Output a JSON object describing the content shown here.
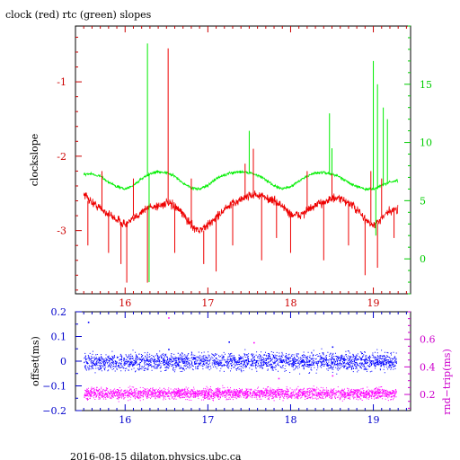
{
  "title": "clock (red) rtc (green) slopes",
  "footer": "2016-08-15  dilaton.physics.ubc.ca",
  "colors": {
    "clock": "#ee0000",
    "rtc": "#00ee00",
    "offset": "#0000ff",
    "rndtrip": "#ff00ff",
    "frame_top": "#000000",
    "bottom_axis_top": "#0000cc",
    "left_axis_bottom": "#0000cc",
    "right_axis_top": "#00cc00",
    "right_axis_bottom": "#cc00cc",
    "left_axis_top": "#cc0000"
  },
  "chart_data": [
    {
      "id": "slopes",
      "type": "line",
      "ylabel_left": "clockslope",
      "xlim": [
        15.4,
        19.45
      ],
      "ylim_left": [
        -3.85,
        -0.25
      ],
      "ylim_right": [
        -3,
        20
      ],
      "x_ticks": [
        "16",
        "17",
        "18",
        "19"
      ],
      "y_left_ticks": [
        "-1",
        "-2",
        "-3"
      ],
      "y_right_ticks": [
        "0",
        "5",
        "10",
        "15"
      ],
      "grid": false,
      "series": [
        {
          "axis": "left",
          "x": [
            15.5,
            15.6,
            15.7,
            15.8,
            15.9,
            16.0,
            16.1,
            16.2,
            16.3,
            16.4,
            16.5,
            16.6,
            16.7,
            16.8,
            16.9,
            17.0,
            17.1,
            17.2,
            17.3,
            17.4,
            17.5,
            17.6,
            17.7,
            17.8,
            17.9,
            18.0,
            18.1,
            18.2,
            18.3,
            18.4,
            18.5,
            18.6,
            18.7,
            18.8,
            18.9,
            19.0,
            19.1,
            19.2,
            19.3
          ],
          "y": [
            -2.5,
            -2.62,
            -2.7,
            -2.78,
            -2.85,
            -2.92,
            -2.85,
            -2.74,
            -2.68,
            -2.67,
            -2.63,
            -2.68,
            -2.78,
            -2.93,
            -3.0,
            -2.93,
            -2.82,
            -2.72,
            -2.64,
            -2.58,
            -2.52,
            -2.52,
            -2.56,
            -2.6,
            -2.67,
            -2.78,
            -2.8,
            -2.73,
            -2.67,
            -2.61,
            -2.57,
            -2.58,
            -2.62,
            -2.72,
            -2.85,
            -2.94,
            -2.84,
            -2.74,
            -2.72
          ]
        },
        {
          "axis": "right",
          "x": [
            15.5,
            15.6,
            15.7,
            15.8,
            15.9,
            16.0,
            16.1,
            16.2,
            16.3,
            16.4,
            16.5,
            16.6,
            16.7,
            16.8,
            16.9,
            17.0,
            17.1,
            17.2,
            17.3,
            17.4,
            17.5,
            17.6,
            17.7,
            17.8,
            17.9,
            18.0,
            18.1,
            18.2,
            18.3,
            18.4,
            18.5,
            18.6,
            18.7,
            18.8,
            18.9,
            19.0,
            19.1,
            19.2,
            19.3
          ],
          "y": [
            7.3,
            7.3,
            7.1,
            6.6,
            6.2,
            6.0,
            6.3,
            6.9,
            7.3,
            7.5,
            7.4,
            7.1,
            6.5,
            6.1,
            6.0,
            6.3,
            6.9,
            7.2,
            7.4,
            7.5,
            7.4,
            7.2,
            6.8,
            6.3,
            6.0,
            6.2,
            6.7,
            7.1,
            7.4,
            7.4,
            7.3,
            7.0,
            6.6,
            6.2,
            6.0,
            6.0,
            6.3,
            6.6,
            6.7
          ]
        }
      ],
      "spikes": [
        {
          "axis": "left",
          "x": 15.55,
          "y1": -2.6,
          "y2": -3.2
        },
        {
          "axis": "left",
          "x": 15.72,
          "y1": -2.7,
          "y2": -2.2
        },
        {
          "axis": "left",
          "x": 15.8,
          "y1": -2.8,
          "y2": -3.3
        },
        {
          "axis": "left",
          "x": 15.95,
          "y1": -2.9,
          "y2": -3.45
        },
        {
          "axis": "left",
          "x": 16.02,
          "y1": -2.9,
          "y2": -3.7
        },
        {
          "axis": "left",
          "x": 16.1,
          "y1": -2.8,
          "y2": -2.3
        },
        {
          "axis": "left",
          "x": 16.27,
          "y1": -2.7,
          "y2": -3.7
        },
        {
          "axis": "left",
          "x": 16.52,
          "y1": -2.65,
          "y2": -0.55
        },
        {
          "axis": "left",
          "x": 16.6,
          "y1": -2.7,
          "y2": -3.3
        },
        {
          "axis": "left",
          "x": 16.8,
          "y1": -2.9,
          "y2": -2.3
        },
        {
          "axis": "left",
          "x": 16.95,
          "y1": -3.0,
          "y2": -3.45
        },
        {
          "axis": "left",
          "x": 17.1,
          "y1": -2.8,
          "y2": -3.55
        },
        {
          "axis": "left",
          "x": 17.3,
          "y1": -2.64,
          "y2": -3.2
        },
        {
          "axis": "left",
          "x": 17.45,
          "y1": -2.55,
          "y2": -2.1
        },
        {
          "axis": "left",
          "x": 17.55,
          "y1": -2.5,
          "y2": -1.9
        },
        {
          "axis": "left",
          "x": 17.65,
          "y1": -2.55,
          "y2": -3.4
        },
        {
          "axis": "left",
          "x": 17.83,
          "y1": -2.6,
          "y2": -3.1
        },
        {
          "axis": "left",
          "x": 18.0,
          "y1": -2.8,
          "y2": -3.3
        },
        {
          "axis": "left",
          "x": 18.2,
          "y1": -2.7,
          "y2": -2.2
        },
        {
          "axis": "left",
          "x": 18.4,
          "y1": -2.6,
          "y2": -3.4
        },
        {
          "axis": "left",
          "x": 18.5,
          "y1": -2.57,
          "y2": -2.0
        },
        {
          "axis": "left",
          "x": 18.7,
          "y1": -2.62,
          "y2": -3.2
        },
        {
          "axis": "left",
          "x": 18.9,
          "y1": -2.85,
          "y2": -3.6
        },
        {
          "axis": "left",
          "x": 18.97,
          "y1": -2.9,
          "y2": -2.2
        },
        {
          "axis": "left",
          "x": 19.05,
          "y1": -2.9,
          "y2": -3.5
        },
        {
          "axis": "left",
          "x": 19.1,
          "y1": -2.8,
          "y2": -2.3
        },
        {
          "axis": "left",
          "x": 19.25,
          "y1": -2.72,
          "y2": -3.1
        },
        {
          "axis": "right",
          "x": 16.27,
          "y1": 7.3,
          "y2": 18.5
        },
        {
          "axis": "right",
          "x": 16.29,
          "y1": 7.3,
          "y2": -2.0
        },
        {
          "axis": "right",
          "x": 17.5,
          "y1": 7.4,
          "y2": 11.0
        },
        {
          "axis": "right",
          "x": 18.47,
          "y1": 7.3,
          "y2": 12.5
        },
        {
          "axis": "right",
          "x": 18.5,
          "y1": 7.3,
          "y2": 9.5
        },
        {
          "axis": "right",
          "x": 19.0,
          "y1": 6.0,
          "y2": 17.0
        },
        {
          "axis": "right",
          "x": 19.03,
          "y1": 6.0,
          "y2": 2.0
        },
        {
          "axis": "right",
          "x": 19.05,
          "y1": 6.0,
          "y2": 15.0
        },
        {
          "axis": "right",
          "x": 19.12,
          "y1": 6.3,
          "y2": 13.0
        },
        {
          "axis": "right",
          "x": 19.17,
          "y1": 6.5,
          "y2": 12.0
        }
      ]
    },
    {
      "id": "offset",
      "type": "scatter",
      "ylabel_left": "offset(ms)",
      "ylabel_right": "rnd−trip(ms)",
      "xlim": [
        15.4,
        19.45
      ],
      "ylim_left": [
        -0.2,
        0.2
      ],
      "ylim_right": [
        0.083,
        0.8
      ],
      "x_ticks": [
        "16",
        "17",
        "18",
        "19"
      ],
      "y_left_ticks": [
        "0.2",
        "0.1",
        "0",
        "−0.1",
        "−0.2"
      ],
      "y_right_ticks": [
        "0.6",
        "0.4",
        "0.2"
      ],
      "grid": false,
      "x_range": [
        15.5,
        19.28
      ],
      "series": [
        {
          "name": "offset",
          "axis": "left",
          "center": 0.0,
          "spread": 0.035
        },
        {
          "name": "rnd-trip",
          "axis": "right",
          "center": 0.21,
          "spread": 0.04
        }
      ],
      "outliers": [
        {
          "axis": "left",
          "x": 15.55,
          "y": 0.16
        },
        {
          "axis": "left",
          "x": 16.52,
          "y": 0.05
        },
        {
          "axis": "left",
          "x": 17.25,
          "y": 0.08
        },
        {
          "axis": "left",
          "x": 18.5,
          "y": 0.06
        },
        {
          "axis": "right",
          "x": 16.52,
          "y": 0.76
        },
        {
          "axis": "right",
          "x": 17.55,
          "y": 0.58
        },
        {
          "axis": "right",
          "x": 17.85,
          "y": 0.32
        },
        {
          "axis": "right",
          "x": 18.5,
          "y": 0.34
        }
      ]
    }
  ]
}
